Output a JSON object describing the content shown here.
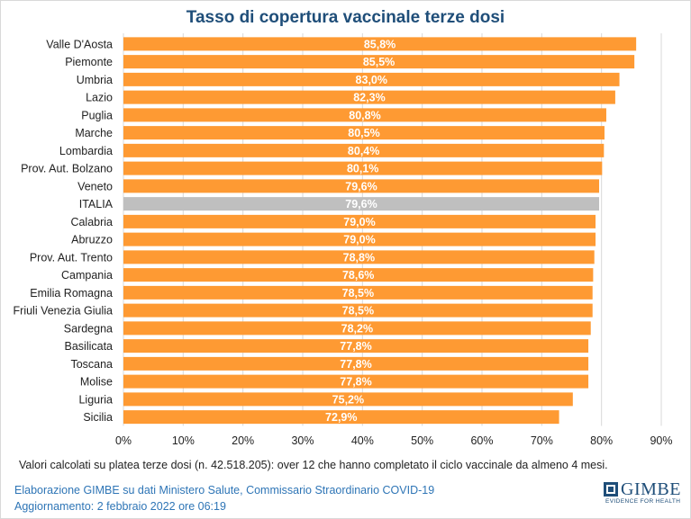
{
  "chart_data": {
    "type": "bar",
    "orientation": "horizontal",
    "title": "Tasso di copertura vaccinale terze dosi",
    "categories": [
      "Valle D'Aosta",
      "Piemonte",
      "Umbria",
      "Lazio",
      "Puglia",
      "Marche",
      "Lombardia",
      "Prov. Aut. Bolzano",
      "Veneto",
      "ITALIA",
      "Calabria",
      "Abruzzo",
      "Prov. Aut. Trento",
      "Campania",
      "Emilia Romagna",
      "Friuli Venezia Giulia",
      "Sardegna",
      "Basilicata",
      "Toscana",
      "Molise",
      "Liguria",
      "Sicilia"
    ],
    "values": [
      85.8,
      85.5,
      83.0,
      82.3,
      80.8,
      80.5,
      80.4,
      80.1,
      79.6,
      79.6,
      79.0,
      79.0,
      78.8,
      78.6,
      78.5,
      78.5,
      78.2,
      77.8,
      77.8,
      77.8,
      75.2,
      72.9
    ],
    "data_labels": [
      "85,8%",
      "85,5%",
      "83,0%",
      "82,3%",
      "80,8%",
      "80,5%",
      "80,4%",
      "80,1%",
      "79,6%",
      "79,6%",
      "79,0%",
      "79,0%",
      "78,8%",
      "78,6%",
      "78,5%",
      "78,5%",
      "78,2%",
      "77,8%",
      "77,8%",
      "77,8%",
      "75,2%",
      "72,9%"
    ],
    "xticks": [
      0,
      10,
      20,
      30,
      40,
      50,
      60,
      70,
      80,
      90
    ],
    "xtick_labels": [
      "0%",
      "10%",
      "20%",
      "30%",
      "40%",
      "50%",
      "60%",
      "70%",
      "80%",
      "90%"
    ],
    "xlim": [
      0,
      90
    ],
    "grid": "vertical",
    "colors": {
      "bar": "#fe9a33",
      "highlight": "#bfbfbf",
      "label": "#ffffff",
      "grid": "#d9d9d9"
    },
    "highlight_category": "ITALIA"
  },
  "note": "Valori calcolati su platea terze dosi (n. 42.518.205): over 12 che hanno completato il ciclo vaccinale da almeno 4 mesi.",
  "footer": {
    "source": "Elaborazione GIMBE su dati Ministero Salute, Commissario Straordinario COVID-19",
    "updated": "Aggiornamento: 2 febbraio 2022 ore 06:19"
  },
  "logo": {
    "name": "GIMBE",
    "tagline": "EVIDENCE FOR HEALTH",
    "icon": "gimbe-square-icon"
  }
}
